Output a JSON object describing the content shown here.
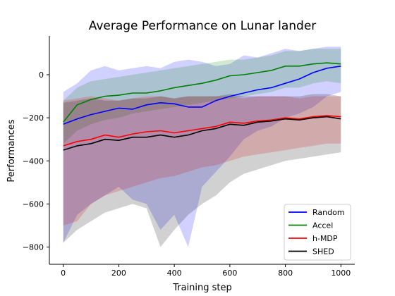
{
  "chart_data": {
    "type": "line",
    "title": "Average Performance on Lunar lander",
    "xlabel": "Training step",
    "ylabel": "Performances",
    "xlim": [
      -50,
      1050
    ],
    "ylim": [
      -880,
      180
    ],
    "xticks": [
      0,
      200,
      400,
      600,
      800,
      1000
    ],
    "yticks": [
      0,
      -200,
      -400,
      -600,
      -800
    ],
    "grid": false,
    "legend_position": "lower-right",
    "series": [
      {
        "name": "Random",
        "color": "#0000ff",
        "x": [
          0,
          50,
          100,
          150,
          200,
          250,
          300,
          350,
          400,
          450,
          500,
          550,
          600,
          650,
          700,
          750,
          800,
          850,
          900,
          950,
          1000
        ],
        "y": [
          -230,
          -205,
          -185,
          -170,
          -155,
          -160,
          -140,
          -130,
          -135,
          -150,
          -150,
          -120,
          -100,
          -85,
          -70,
          -60,
          -40,
          -20,
          10,
          30,
          40
        ],
        "band_low": [
          -780,
          -650,
          -600,
          -560,
          -520,
          -580,
          -600,
          -720,
          -650,
          -800,
          -520,
          -450,
          -380,
          -300,
          -260,
          -240,
          -200,
          -180,
          -150,
          -100,
          -80
        ],
        "band_high": [
          -80,
          -40,
          20,
          40,
          20,
          30,
          40,
          30,
          60,
          70,
          60,
          40,
          50,
          90,
          80,
          100,
          120,
          110,
          120,
          130,
          130
        ]
      },
      {
        "name": "Accel",
        "color": "#008000",
        "x": [
          0,
          50,
          100,
          150,
          200,
          250,
          300,
          350,
          400,
          450,
          500,
          550,
          600,
          650,
          700,
          750,
          800,
          850,
          900,
          950,
          1000
        ],
        "y": [
          -220,
          -140,
          -115,
          -100,
          -95,
          -85,
          -85,
          -75,
          -60,
          -50,
          -40,
          -25,
          -5,
          0,
          10,
          20,
          40,
          40,
          50,
          55,
          50
        ],
        "band_low": [
          -320,
          -260,
          -230,
          -210,
          -200,
          -180,
          -170,
          -160,
          -150,
          -140,
          -130,
          -120,
          -110,
          -100,
          -90,
          -80,
          -60,
          -60,
          -40,
          -30,
          -40
        ],
        "band_high": [
          -120,
          -60,
          -30,
          -20,
          -10,
          0,
          10,
          20,
          30,
          40,
          50,
          60,
          70,
          70,
          80,
          90,
          110,
          110,
          120,
          120,
          120
        ]
      },
      {
        "name": "h-MDP",
        "color": "#ff0000",
        "x": [
          0,
          50,
          100,
          150,
          200,
          250,
          300,
          350,
          400,
          450,
          500,
          550,
          600,
          650,
          700,
          750,
          800,
          850,
          900,
          950,
          1000
        ],
        "y": [
          -330,
          -310,
          -300,
          -280,
          -290,
          -275,
          -265,
          -260,
          -270,
          -260,
          -250,
          -240,
          -220,
          -225,
          -215,
          -210,
          -200,
          -205,
          -195,
          -190,
          -195
        ],
        "band_low": [
          -700,
          -680,
          -600,
          -560,
          -540,
          -520,
          -500,
          -480,
          -470,
          -450,
          -430,
          -420,
          -400,
          -380,
          -370,
          -360,
          -350,
          -340,
          -330,
          -320,
          -320
        ],
        "band_high": [
          -120,
          -110,
          -100,
          -110,
          -120,
          -110,
          -100,
          -100,
          -110,
          -100,
          -100,
          -100,
          -100,
          -110,
          -100,
          -100,
          -100,
          -110,
          -100,
          -100,
          -100
        ]
      },
      {
        "name": "SHED",
        "color": "#000000",
        "x": [
          0,
          50,
          100,
          150,
          200,
          250,
          300,
          350,
          400,
          450,
          500,
          550,
          600,
          650,
          700,
          750,
          800,
          850,
          900,
          950,
          1000
        ],
        "y": [
          -350,
          -330,
          -320,
          -300,
          -305,
          -290,
          -290,
          -280,
          -290,
          -280,
          -260,
          -250,
          -230,
          -235,
          -220,
          -215,
          -205,
          -210,
          -200,
          -195,
          -205
        ],
        "band_low": [
          -780,
          -720,
          -680,
          -640,
          -620,
          -600,
          -620,
          -800,
          -720,
          -650,
          -600,
          -560,
          -500,
          -460,
          -440,
          -420,
          -400,
          -390,
          -380,
          -370,
          -360
        ],
        "band_high": [
          -130,
          -120,
          -110,
          -120,
          -120,
          -110,
          -110,
          -100,
          -110,
          -100,
          -100,
          -100,
          -90,
          -100,
          -100,
          -100,
          -100,
          -100,
          -90,
          -90,
          -100
        ]
      }
    ]
  }
}
